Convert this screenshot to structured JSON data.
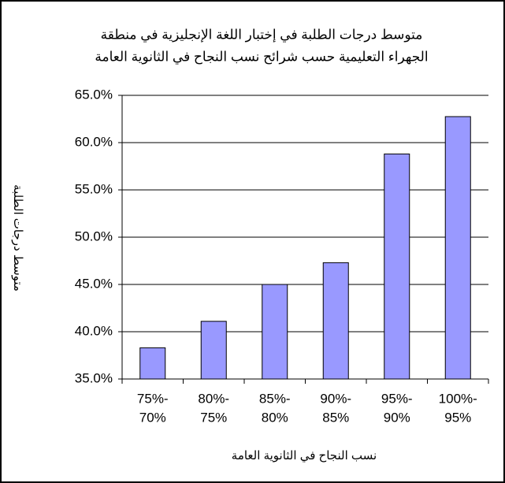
{
  "chart_data": {
    "type": "bar",
    "title": [
      "متوسط درجات الطلبة في إختبار اللغة الإنجليزية في منطقة",
      "الجهراء التعليمية حسب شرائح نسب النجاح في الثانوية العامة"
    ],
    "x_label": "نسب النجاح في الثانوية العامة",
    "y_label": "متوسط درجات الطلبة",
    "categories": [
      [
        "75%-",
        "70%"
      ],
      [
        "80%-",
        "75%"
      ],
      [
        "85%-",
        "80%"
      ],
      [
        "90%-",
        "85%"
      ],
      [
        "95%-",
        "90%"
      ],
      [
        "100%-",
        "95%"
      ]
    ],
    "values": [
      38.3,
      41.1,
      45.0,
      47.3,
      58.8,
      62.75
    ],
    "color": "#9999ff",
    "ylim": [
      35,
      65
    ],
    "yticks": [
      {
        "value": 35,
        "label": "35.0%"
      },
      {
        "value": 40,
        "label": "40.0%"
      },
      {
        "value": 45,
        "label": "45.0%"
      },
      {
        "value": 50,
        "label": "50.0%"
      },
      {
        "value": 55,
        "label": "55.0%"
      },
      {
        "value": 60,
        "label": "60.0%"
      },
      {
        "value": 65,
        "label": "65.0%"
      }
    ],
    "grid": true
  }
}
